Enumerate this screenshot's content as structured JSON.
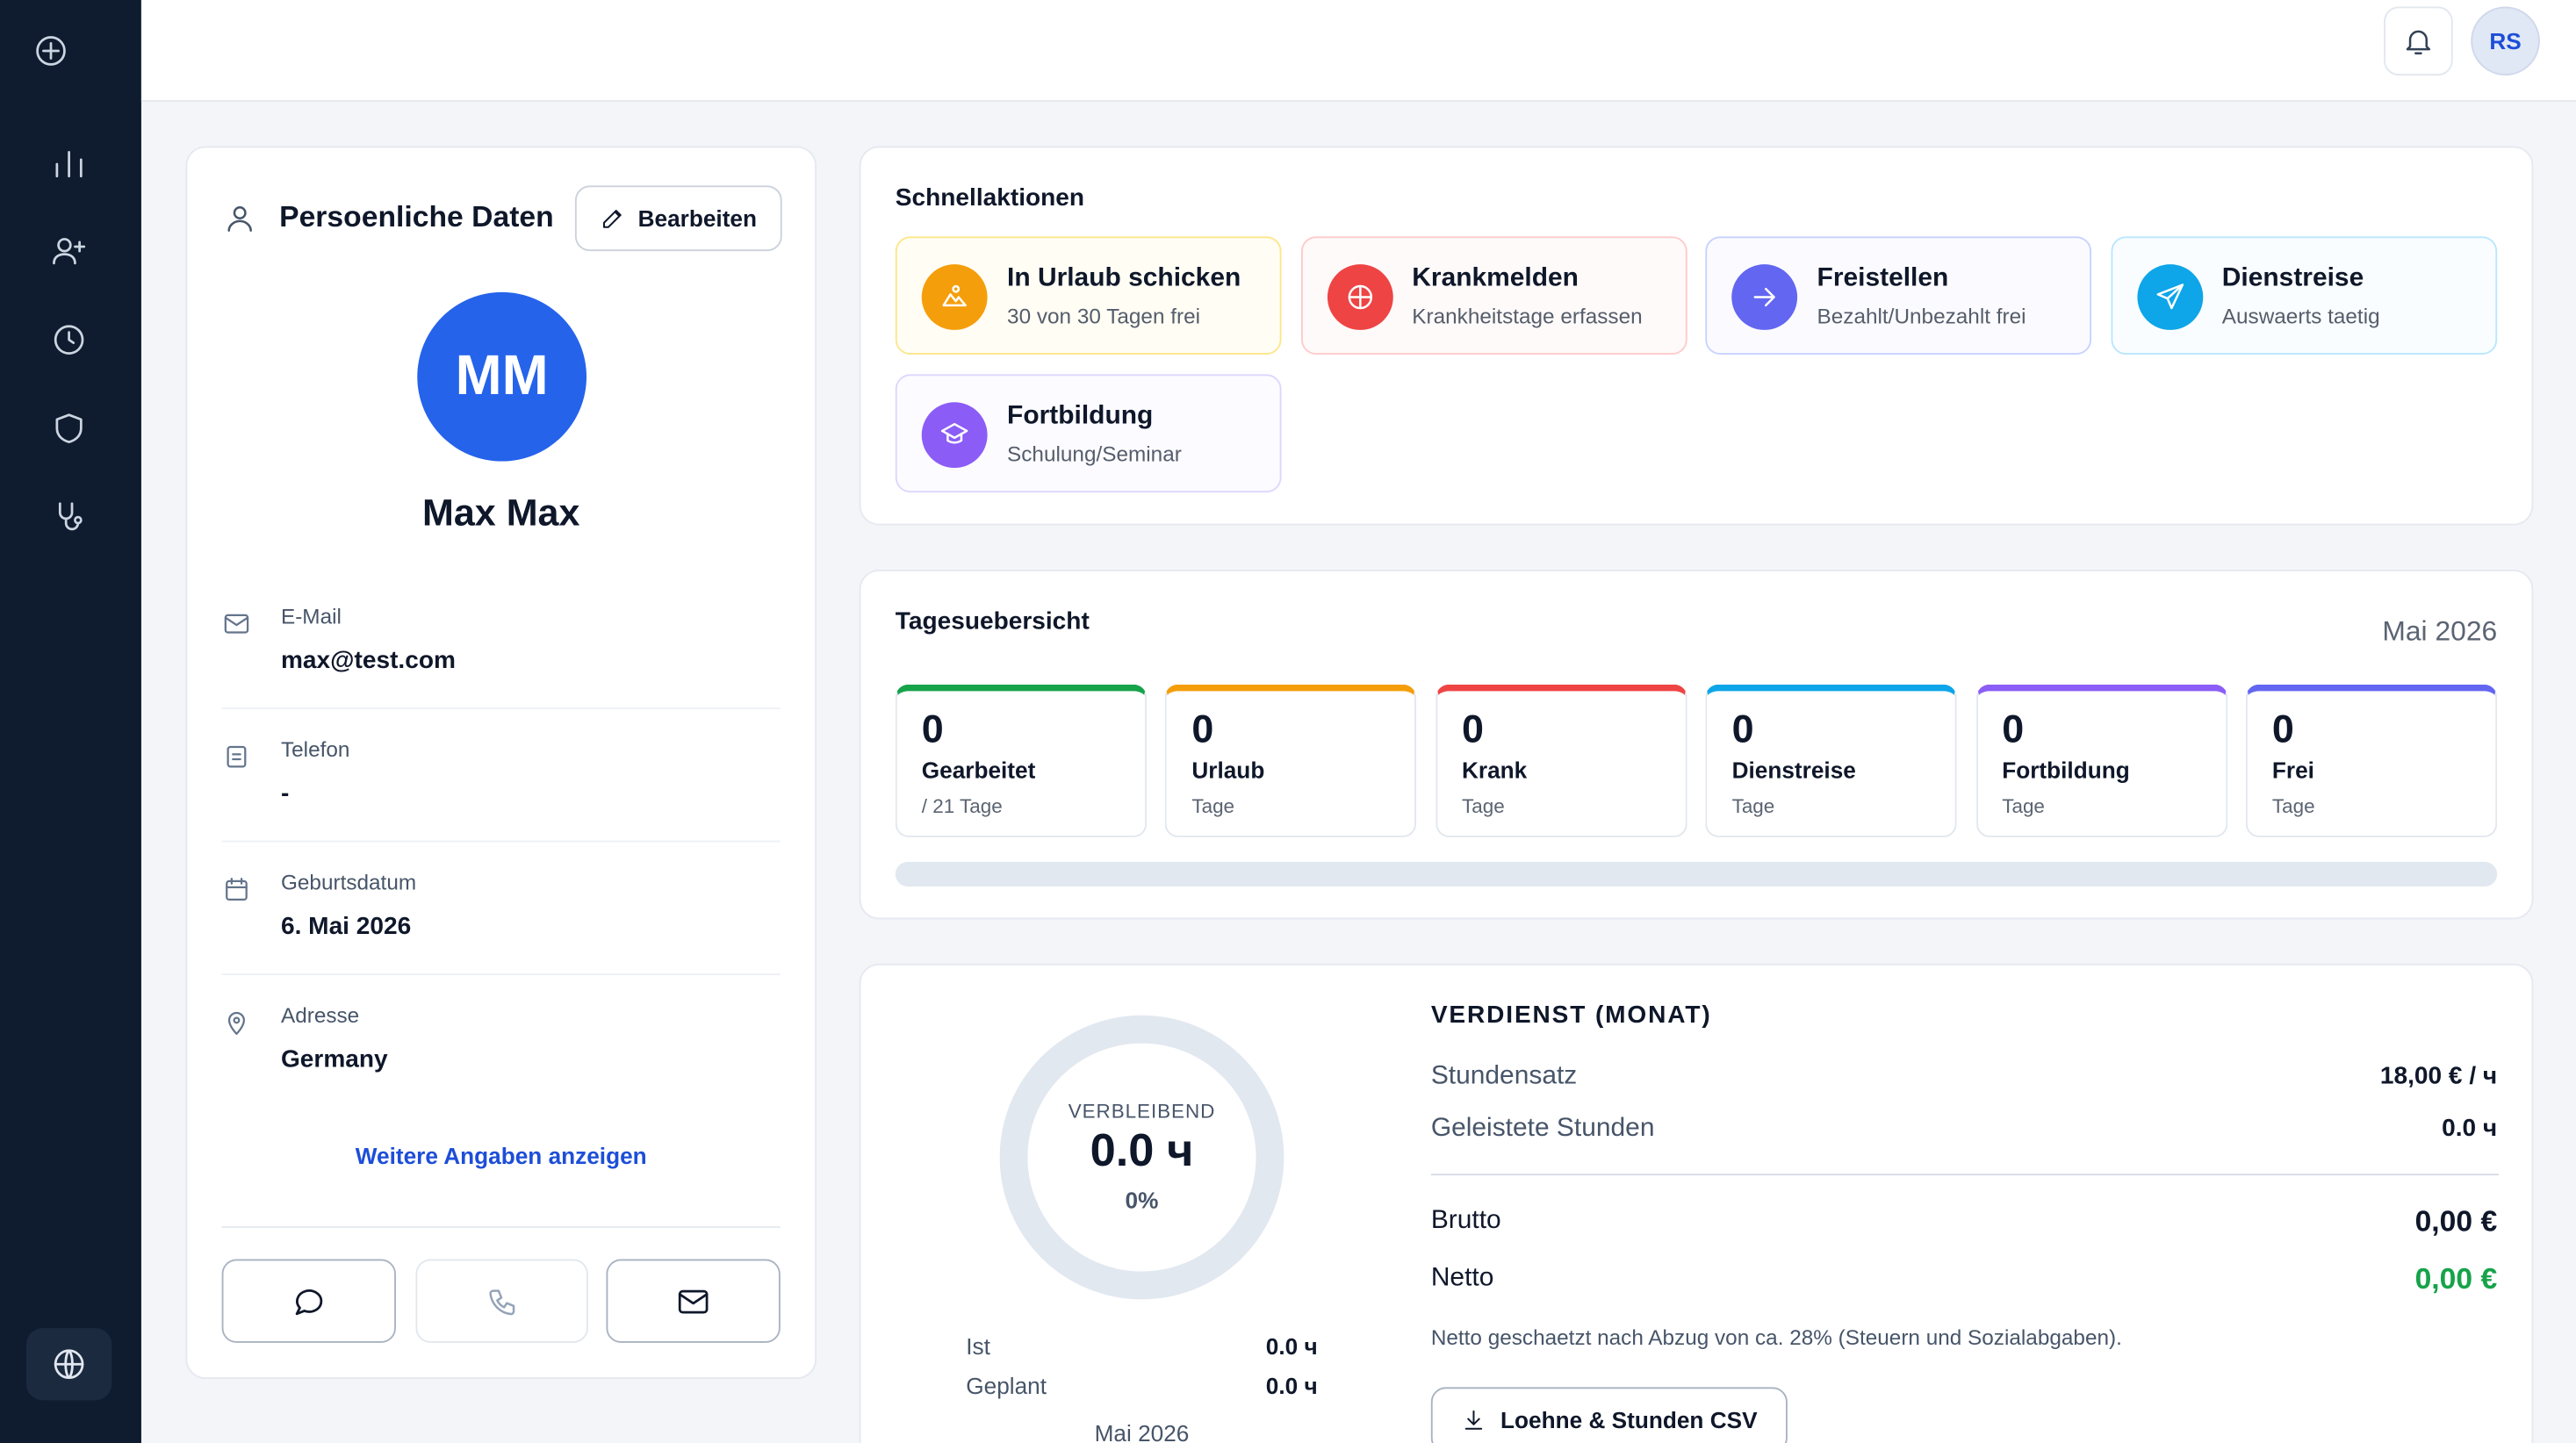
{
  "header": {
    "avatar": "RS"
  },
  "profile": {
    "title": "Persoenliche Daten",
    "edit": "Bearbeiten",
    "initials": "MM",
    "name": "Max Max",
    "fields": [
      {
        "label": "E-Mail",
        "value": "max@test.com"
      },
      {
        "label": "Telefon",
        "value": "-"
      },
      {
        "label": "Geburtsdatum",
        "value": "6. Mai 2026"
      },
      {
        "label": "Adresse",
        "value": "Germany"
      }
    ],
    "more": "Weitere Angaben anzeigen"
  },
  "quick_actions": {
    "title": "Schnellaktionen",
    "items": [
      {
        "title": "In Urlaub schicken",
        "subtitle": "30 von 30 Tagen frei"
      },
      {
        "title": "Krankmelden",
        "subtitle": "Krankheitstage erfassen"
      },
      {
        "title": "Freistellen",
        "subtitle": "Bezahlt/Unbezahlt frei"
      },
      {
        "title": "Dienstreise",
        "subtitle": "Auswaerts taetig"
      },
      {
        "title": "Fortbildung",
        "subtitle": "Schulung/Seminar"
      }
    ]
  },
  "day_overview": {
    "title": "Tagesuebersicht",
    "month": "Mai 2026",
    "stats": [
      {
        "value": 0,
        "label": "Gearbeitet",
        "sub": "/ 21 Tage"
      },
      {
        "value": 0,
        "label": "Urlaub",
        "sub": "Tage"
      },
      {
        "value": 0,
        "label": "Krank",
        "sub": "Tage"
      },
      {
        "value": 0,
        "label": "Dienstreise",
        "sub": "Tage"
      },
      {
        "value": 0,
        "label": "Fortbildung",
        "sub": "Tage"
      },
      {
        "value": 0,
        "label": "Frei",
        "sub": "Tage"
      }
    ]
  },
  "earnings": {
    "ring_label": "VERBLEIBEND",
    "ring_value": "0.0 ч",
    "ring_percent": "0%",
    "summary": [
      {
        "label": "Ist",
        "value": "0.0 ч"
      },
      {
        "label": "Geplant",
        "value": "0.0 ч"
      }
    ],
    "month": "Mai 2026",
    "title": "VERDIENST (MONAT)",
    "rows": [
      {
        "label": "Stundensatz",
        "value": "18,00 € / ч"
      },
      {
        "label": "Geleistete Stunden",
        "value": "0.0 ч"
      }
    ],
    "totals": [
      {
        "label": "Brutto",
        "value": "0,00 €"
      },
      {
        "label": "Netto",
        "value": "0,00 €"
      }
    ],
    "note": "Netto geschaetzt nach Abzug von ca. 28% (Steuern und Sozialabgaben).",
    "csv": "Loehne & Stunden CSV"
  }
}
